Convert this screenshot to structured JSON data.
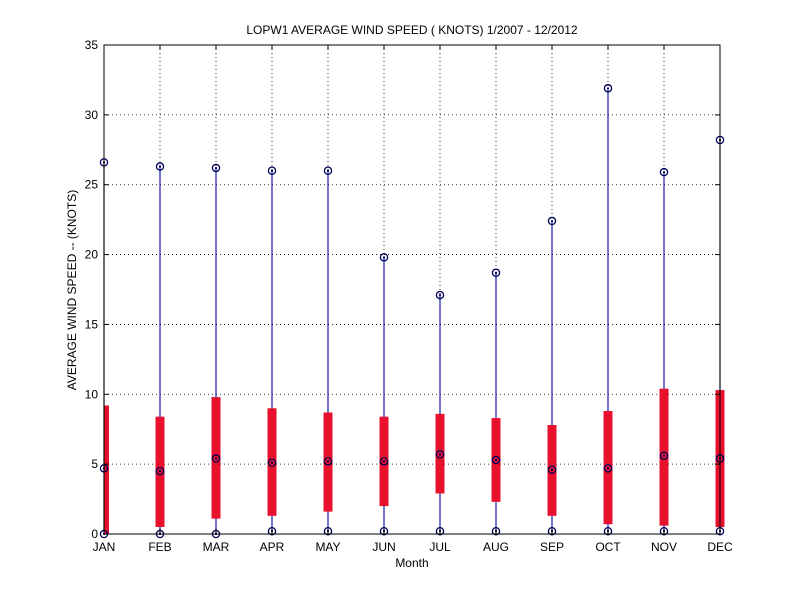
{
  "chart_data": {
    "type": "box",
    "title": "LOPW1  AVERAGE WIND SPEED ( KNOTS) 1/2007 - 12/2012",
    "xlabel": "Month",
    "ylabel": "AVERAGE WIND SPEED -- (KNOTS)",
    "ylim": [
      0,
      35
    ],
    "yticks": [
      "0",
      "5",
      "10",
      "15",
      "20",
      "25",
      "30",
      "35"
    ],
    "grid": true,
    "colors": {
      "whisker": "#1a1aa6",
      "box": "#e8112d",
      "marker": "#00005a",
      "axis": "#000000",
      "grid": "#000000"
    },
    "categories": [
      "JAN",
      "FEB",
      "MAR",
      "APR",
      "MAY",
      "JUN",
      "JUL",
      "AUG",
      "SEP",
      "OCT",
      "NOV",
      "DEC"
    ],
    "min": [
      0.0,
      0.0,
      0.0,
      0.2,
      0.2,
      0.2,
      0.2,
      0.2,
      0.2,
      0.2,
      0.2,
      0.2
    ],
    "q1": [
      0.0,
      0.5,
      1.1,
      1.3,
      1.6,
      2.0,
      2.9,
      2.3,
      1.3,
      0.7,
      0.6,
      0.5
    ],
    "median": [
      4.7,
      4.5,
      5.4,
      5.1,
      5.2,
      5.2,
      5.7,
      5.3,
      4.6,
      4.7,
      5.6,
      5.4
    ],
    "q3": [
      9.2,
      8.4,
      9.8,
      9.0,
      8.7,
      8.4,
      8.6,
      8.3,
      7.8,
      8.8,
      10.4,
      10.3
    ],
    "max": [
      26.6,
      26.3,
      26.2,
      26.0,
      26.0,
      19.8,
      17.1,
      18.7,
      22.4,
      31.9,
      25.9,
      28.2
    ]
  }
}
